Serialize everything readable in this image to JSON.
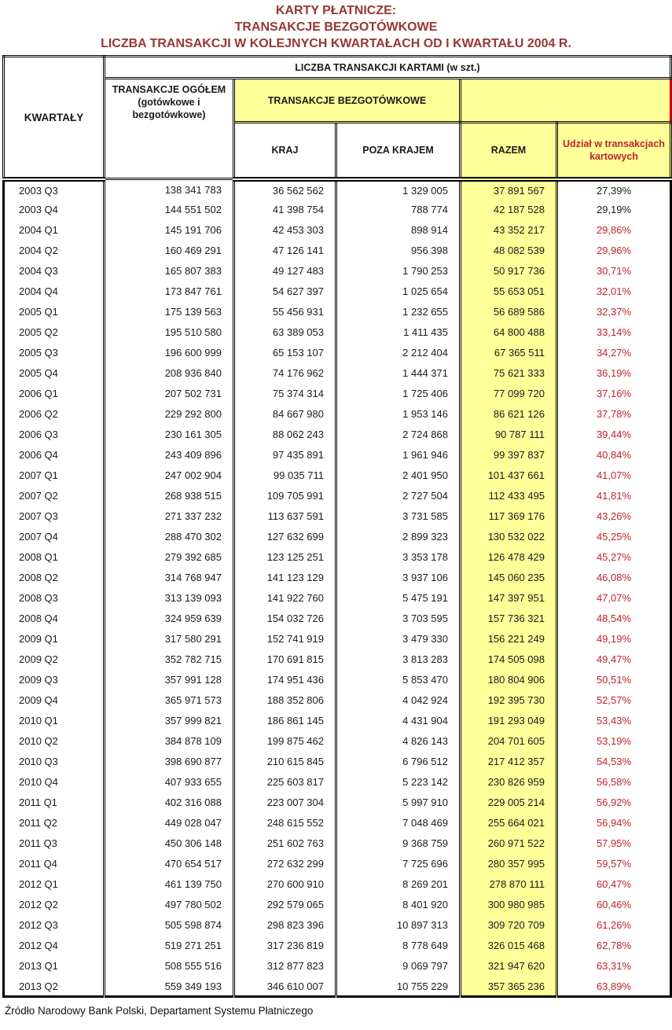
{
  "title": {
    "line1": "KARTY PŁATNICZE:",
    "line2": "TRANSAKCJE BEZGOTÓWKOWE",
    "line3": "LICZBA TRANSAKCJI  W KOLEJNYCH KWARTAŁACH OD I KWARTAŁU 2004 R."
  },
  "colors": {
    "darkred": "#953735",
    "red": "#C0242C",
    "yellow": "#FFFF99"
  },
  "table": {
    "header": {
      "kwartaly": "KWARTAŁY",
      "liczba": "LICZBA TRANSAKCJI  KARTAMI  (w szt.)",
      "ogolem": "TRANSAKCJE OGÓŁEM (gotówkowe i bezgotówkowe)",
      "bezgotowkowe": "TRANSAKCJE BEZGOTÓWKOWE",
      "kraj": "KRAJ",
      "poza_krajem": "POZA KRAJEM",
      "razem": "RAZEM",
      "udzial": "Udział w transakcjach kartowych"
    },
    "red_share_from_row": 2,
    "rows": [
      [
        "2003 Q3",
        "138 341 783",
        "36 562 562",
        "1 329 005",
        "37 891 567",
        "27,39%"
      ],
      [
        "2003 Q4",
        "144 551 502",
        "41 398 754",
        "788 774",
        "42 187 528",
        "29,19%"
      ],
      [
        "2004 Q1",
        "145 191 706",
        "42 453 303",
        "898 914",
        "43 352 217",
        "29,86%"
      ],
      [
        "2004 Q2",
        "160 469 291",
        "47 126 141",
        "956 398",
        "48 082 539",
        "29,96%"
      ],
      [
        "2004 Q3",
        "165 807 383",
        "49 127 483",
        "1 790 253",
        "50 917 736",
        "30,71%"
      ],
      [
        "2004 Q4",
        "173 847 761",
        "54 627 397",
        "1 025 654",
        "55 653 051",
        "32,01%"
      ],
      [
        "2005 Q1",
        "175 139 563",
        "55 456 931",
        "1 232 655",
        "56 689 586",
        "32,37%"
      ],
      [
        "2005 Q2",
        "195 510 580",
        "63 389 053",
        "1 411 435",
        "64 800 488",
        "33,14%"
      ],
      [
        "2005 Q3",
        "196 600 999",
        "65 153 107",
        "2 212 404",
        "67 365 511",
        "34,27%"
      ],
      [
        "2005 Q4",
        "208 936 840",
        "74 176 962",
        "1 444 371",
        "75 621 333",
        "36,19%"
      ],
      [
        "2006 Q1",
        "207 502 731",
        "75 374 314",
        "1 725 406",
        "77 099 720",
        "37,16%"
      ],
      [
        "2006 Q2",
        "229 292 800",
        "84 667 980",
        "1 953 146",
        "86 621 126",
        "37,78%"
      ],
      [
        "2006 Q3",
        "230 161 305",
        "88 062 243",
        "2 724 868",
        "90 787 111",
        "39,44%"
      ],
      [
        "2006 Q4",
        "243 409 896",
        "97 435 891",
        "1 961 946",
        "99 397 837",
        "40,84%"
      ],
      [
        "2007 Q1",
        "247 002 904",
        "99 035 711",
        "2 401 950",
        "101 437 661",
        "41,07%"
      ],
      [
        "2007 Q2",
        "268 938 515",
        "109 705 991",
        "2 727 504",
        "112 433 495",
        "41,81%"
      ],
      [
        "2007 Q3",
        "271 337 232",
        "113 637 591",
        "3 731 585",
        "117 369 176",
        "43,26%"
      ],
      [
        "2007 Q4",
        "288 470 302",
        "127 632 699",
        "2 899 323",
        "130 532 022",
        "45,25%"
      ],
      [
        "2008 Q1",
        "279 392 685",
        "123 125 251",
        "3 353 178",
        "126 478 429",
        "45,27%"
      ],
      [
        "2008 Q2",
        "314 768 947",
        "141 123 129",
        "3 937 106",
        "145 060 235",
        "46,08%"
      ],
      [
        "2008 Q3",
        "313 139 093",
        "141 922 760",
        "5 475 191",
        "147 397 951",
        "47,07%"
      ],
      [
        "2008 Q4",
        "324 959 639",
        "154 032 726",
        "3 703 595",
        "157 736 321",
        "48,54%"
      ],
      [
        "2009 Q1",
        "317 580 291",
        "152 741 919",
        "3 479 330",
        "156 221 249",
        "49,19%"
      ],
      [
        "2009 Q2",
        "352 782 715",
        "170 691 815",
        "3 813 283",
        "174 505 098",
        "49,47%"
      ],
      [
        "2009 Q3",
        "357 991 128",
        "174 951 436",
        "5 853 470",
        "180 804 906",
        "50,51%"
      ],
      [
        "2009 Q4",
        "365 971 573",
        "188 352 806",
        "4 042 924",
        "192 395 730",
        "52,57%"
      ],
      [
        "2010 Q1",
        "357 999 821",
        "186 861 145",
        "4 431 904",
        "191 293 049",
        "53,43%"
      ],
      [
        "2010 Q2",
        "384 878 109",
        "199 875 462",
        "4 826 143",
        "204 701 605",
        "53,19%"
      ],
      [
        "2010 Q3",
        "398 690 877",
        "210 615 845",
        "6 796 512",
        "217 412 357",
        "54,53%"
      ],
      [
        "2010 Q4",
        "407 933 655",
        "225 603 817",
        "5 223 142",
        "230 826 959",
        "56,58%"
      ],
      [
        "2011 Q1",
        "402 316 088",
        "223 007 304",
        "5 997 910",
        "229 005 214",
        "56,92%"
      ],
      [
        "2011 Q2",
        "449 028 047",
        "248 615 552",
        "7 048 469",
        "255 664 021",
        "56,94%"
      ],
      [
        "2011 Q3",
        "450 306 148",
        "251 602 763",
        "9 368 759",
        "260 971 522",
        "57,95%"
      ],
      [
        "2011 Q4",
        "470 654 517",
        "272 632 299",
        "7 725 696",
        "280 357 995",
        "59,57%"
      ],
      [
        "2012 Q1",
        "461 139 750",
        "270 600 910",
        "8 269 201",
        "278 870 111",
        "60,47%"
      ],
      [
        "2012 Q2",
        "497 780 502",
        "292 579 065",
        "8 401 920",
        "300 980 985",
        "60,46%"
      ],
      [
        "2012 Q3",
        "505 598 874",
        "298 823 396",
        "10 897 313",
        "309 720 709",
        "61,26%"
      ],
      [
        "2012 Q4",
        "519 271 251",
        "317 236 819",
        "8 778 649",
        "326 015 468",
        "62,78%"
      ],
      [
        "2013 Q1",
        "508 555 516",
        "312 877 823",
        "9 069 797",
        "321 947 620",
        "63,31%"
      ],
      [
        "2013 Q2",
        "559 349 193",
        "346 610 007",
        "10 755 229",
        "357 365 236",
        "63,89%"
      ]
    ]
  },
  "footer": "Źródło Narodowy Bank Polski, Departament Systemu Płatniczego"
}
